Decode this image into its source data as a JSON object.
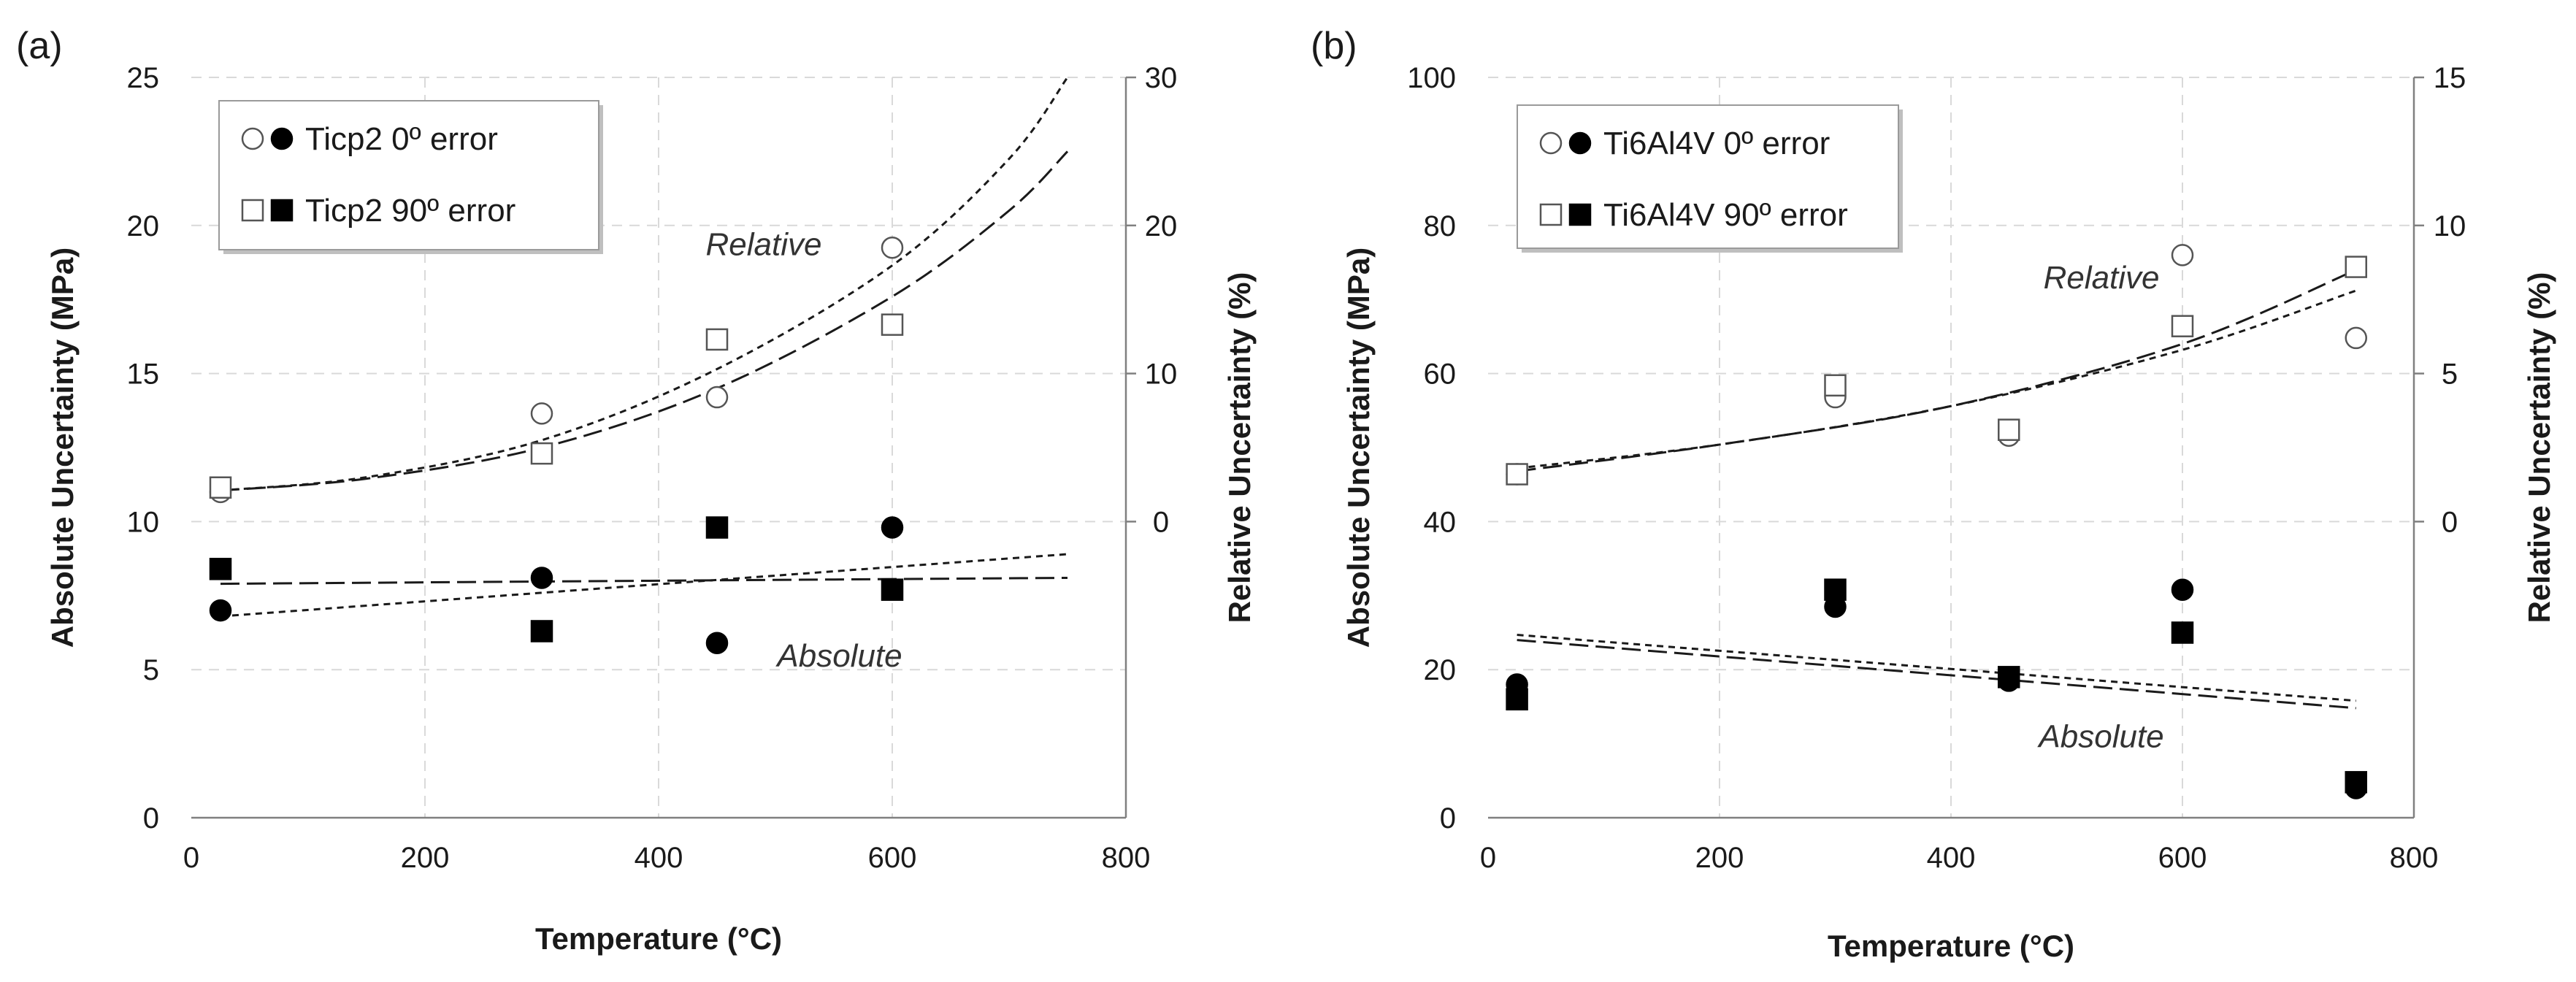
{
  "chart_data": [
    {
      "type": "scatter",
      "panel_label": "(a)",
      "xlabel": "Temperature (°C)",
      "ylabel": "Absolute Uncertainty  (MPa)",
      "y2label": "Relative Uncertainty (%)",
      "xlim": [
        0,
        800
      ],
      "ylim": [
        0,
        25
      ],
      "y2lim": [
        -20,
        30
      ],
      "x_ticks": [
        "0",
        "200",
        "400",
        "600",
        "800"
      ],
      "y_ticks": [
        "0",
        "5",
        "10",
        "15",
        "20",
        "25"
      ],
      "y2_ticks": [
        "0",
        "10",
        "20",
        "30"
      ],
      "legend": [
        {
          "label": "Ticp2 0º error",
          "marker": "circle"
        },
        {
          "label": "Ticp2 90º error",
          "marker": "square"
        }
      ],
      "annotations": [
        {
          "text": "Relative",
          "x": 490,
          "y": 19.0
        },
        {
          "text": "Absolute",
          "x": 555,
          "y": 5.1
        }
      ],
      "series": [
        {
          "name": "Ticp2 0º error (absolute)",
          "axis": "left",
          "marker": "circle",
          "filled": true,
          "x": [
            25,
            300,
            450,
            600
          ],
          "y": [
            7.0,
            8.1,
            5.9,
            9.8
          ]
        },
        {
          "name": "Ticp2 90º error (absolute)",
          "axis": "left",
          "marker": "square",
          "filled": true,
          "x": [
            25,
            300,
            450,
            600
          ],
          "y": [
            8.4,
            6.3,
            9.8,
            7.7
          ]
        },
        {
          "name": "Ticp2 0º error (relative)",
          "axis": "right",
          "marker": "circle",
          "filled": false,
          "x": [
            25,
            300,
            450,
            600
          ],
          "y": [
            2.0,
            7.3,
            8.4,
            18.5
          ]
        },
        {
          "name": "Ticp2 90º error (relative)",
          "axis": "right",
          "marker": "square",
          "filled": false,
          "x": [
            25,
            300,
            450,
            600
          ],
          "y": [
            2.3,
            4.6,
            12.3,
            13.3
          ]
        }
      ],
      "trendlines": [
        {
          "name": "Relative fit 0º",
          "axis": "right",
          "dash": "short",
          "x": [
            25,
            150,
            300,
            450,
            600,
            700,
            750
          ],
          "y": [
            2.1,
            3.0,
            5.5,
            10.3,
            17.3,
            24.5,
            30.0
          ]
        },
        {
          "name": "Relative fit 90º",
          "axis": "right",
          "dash": "long",
          "x": [
            25,
            150,
            300,
            450,
            600,
            700,
            750
          ],
          "y": [
            2.1,
            2.9,
            5.0,
            9.0,
            15.2,
            21.0,
            25.0
          ]
        },
        {
          "name": "Absolute fit 0º",
          "axis": "left",
          "dash": "short",
          "x": [
            25,
            750
          ],
          "y": [
            6.8,
            8.9
          ]
        },
        {
          "name": "Absolute fit 90º",
          "axis": "left",
          "dash": "long",
          "x": [
            25,
            750
          ],
          "y": [
            7.9,
            8.1
          ]
        }
      ]
    },
    {
      "type": "scatter",
      "panel_label": "(b)",
      "xlabel": "Temperature (°C)",
      "ylabel": "Absolute Uncertainty  (MPa)",
      "y2label": "Relative Uncertainty (%)",
      "xlim": [
        0,
        800
      ],
      "ylim": [
        0,
        100
      ],
      "y2lim": [
        -10,
        15
      ],
      "x_ticks": [
        "0",
        "200",
        "400",
        "600",
        "800"
      ],
      "y_ticks": [
        "0",
        "20",
        "40",
        "60",
        "80",
        "100"
      ],
      "y2_ticks": [
        "0",
        "5",
        "10",
        "15"
      ],
      "legend": [
        {
          "label": "Ti6Al4V 0º error",
          "marker": "circle"
        },
        {
          "label": "Ti6Al4V 90º error",
          "marker": "square"
        }
      ],
      "annotations": [
        {
          "text": "Relative",
          "x": 530,
          "y": 71.5
        },
        {
          "text": "Absolute",
          "x": 530,
          "y": 9.5
        }
      ],
      "series": [
        {
          "name": "Ti6Al4V 0º error (absolute)",
          "axis": "left",
          "marker": "circle",
          "filled": true,
          "x": [
            25,
            300,
            450,
            600,
            750
          ],
          "y": [
            18.0,
            28.5,
            18.5,
            30.8,
            4.0
          ]
        },
        {
          "name": "Ti6Al4V 90º error (absolute)",
          "axis": "left",
          "marker": "square",
          "filled": true,
          "x": [
            25,
            300,
            450,
            600,
            750
          ],
          "y": [
            16.0,
            30.8,
            19.0,
            25.0,
            4.8
          ]
        },
        {
          "name": "Ti6Al4V 0º error (relative)",
          "axis": "right",
          "marker": "circle",
          "filled": false,
          "x": [
            25,
            300,
            450,
            600,
            750
          ],
          "y": [
            1.6,
            4.2,
            2.9,
            9.0,
            6.2
          ]
        },
        {
          "name": "Ti6Al4V 90º error (relative)",
          "axis": "right",
          "marker": "square",
          "filled": false,
          "x": [
            25,
            300,
            450,
            600,
            750
          ],
          "y": [
            1.6,
            4.6,
            3.1,
            6.6,
            8.6
          ]
        }
      ],
      "trendlines": [
        {
          "name": "Relative fit 0º",
          "axis": "right",
          "dash": "short",
          "x": [
            25,
            200,
            400,
            600,
            750
          ],
          "y": [
            1.8,
            2.6,
            3.9,
            5.8,
            7.8
          ]
        },
        {
          "name": "Relative fit 90º",
          "axis": "right",
          "dash": "long",
          "x": [
            25,
            200,
            400,
            600,
            750
          ],
          "y": [
            1.7,
            2.6,
            3.9,
            6.0,
            8.5
          ]
        },
        {
          "name": "Absolute fit 0º",
          "axis": "left",
          "dash": "short",
          "x": [
            25,
            750
          ],
          "y": [
            24.7,
            15.8
          ]
        },
        {
          "name": "Absolute fit 90º",
          "axis": "left",
          "dash": "long",
          "x": [
            25,
            750
          ],
          "y": [
            24.0,
            14.8
          ]
        }
      ]
    }
  ]
}
